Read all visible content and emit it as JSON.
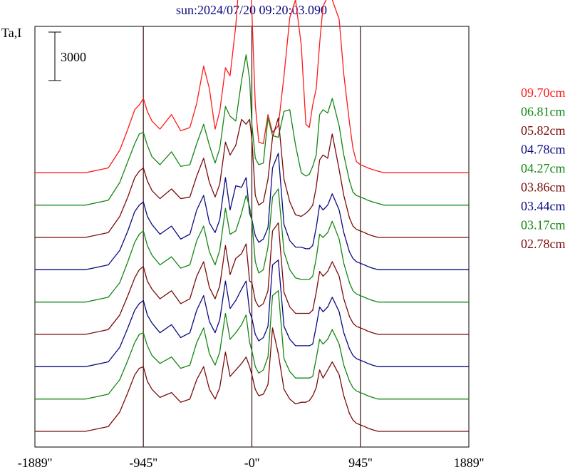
{
  "chart_data": {
    "type": "line",
    "title": "sun:2024/07/20 09:20:03.090",
    "ylabel": "Ta,I",
    "scale_bar_label": "3000",
    "x_ticks": [
      {
        "value": -1889,
        "label": "-1889''"
      },
      {
        "value": -945,
        "label": "-945''"
      },
      {
        "value": 0,
        "label": "-0''"
      },
      {
        "value": 945,
        "label": "945''"
      },
      {
        "value": 1889,
        "label": "1889''"
      }
    ],
    "vertical_markers": [
      -945,
      0,
      945
    ],
    "xlim": [
      -1889,
      1889
    ],
    "legend_placement": "right",
    "x": [
      -1889,
      -1450,
      -1250,
      -1150,
      -1080,
      -1020,
      -980,
      -945,
      -910,
      -870,
      -800,
      -700,
      -620,
      -540,
      -480,
      -420,
      -370,
      -320,
      -280,
      -230,
      -190,
      -140,
      -90,
      -50,
      -20,
      0,
      30,
      60,
      100,
      140,
      180,
      230,
      280,
      330,
      380,
      430,
      470,
      500,
      530,
      560,
      590,
      620,
      660,
      700,
      760,
      800,
      850,
      880,
      910,
      945,
      980,
      1010,
      1050,
      1100,
      1150,
      1250,
      1400,
      1889
    ],
    "series": [
      {
        "name": "09.70cm",
        "color": "#ff1a1a",
        "offset": 16000,
        "y": [
          0,
          0,
          300,
          1400,
          2700,
          3900,
          4200,
          4600,
          3800,
          3200,
          2700,
          3600,
          2600,
          2800,
          4300,
          6600,
          5200,
          2700,
          3800,
          6500,
          6000,
          9100,
          13900,
          16700,
          13500,
          10000,
          4200,
          1900,
          1800,
          3600,
          2500,
          2900,
          6000,
          9600,
          10700,
          7900,
          3000,
          2800,
          4200,
          5200,
          8000,
          10300,
          10900,
          10700,
          9500,
          6100,
          3100,
          1500,
          700,
          500,
          400,
          300,
          200,
          100,
          0,
          0,
          0,
          0
        ]
      },
      {
        "name": "06.81cm",
        "color": "#138613",
        "offset": 14000,
        "y": [
          0,
          0,
          300,
          1400,
          2700,
          3800,
          4400,
          4500,
          3700,
          3000,
          2500,
          3300,
          2400,
          2500,
          3800,
          5000,
          3700,
          2600,
          3500,
          6100,
          5500,
          5200,
          7700,
          9300,
          7800,
          5000,
          2900,
          2500,
          2600,
          5400,
          4300,
          4200,
          5800,
          5900,
          3700,
          2000,
          1800,
          1900,
          2400,
          3100,
          5600,
          5900,
          5700,
          6600,
          4900,
          3100,
          1500,
          800,
          600,
          500,
          400,
          300,
          200,
          100,
          0,
          0,
          0,
          0
        ]
      },
      {
        "name": "05.82cm",
        "color": "#7a0a0a",
        "offset": 12000,
        "y": [
          0,
          0,
          300,
          1300,
          2500,
          3700,
          4100,
          4300,
          3500,
          2900,
          2400,
          3000,
          2400,
          2500,
          3800,
          4900,
          3400,
          2500,
          3300,
          5900,
          5100,
          5700,
          7300,
          7000,
          7300,
          6100,
          2600,
          2000,
          2200,
          3600,
          6200,
          7400,
          3600,
          2200,
          1400,
          1300,
          1500,
          1700,
          2000,
          3100,
          4800,
          5100,
          4900,
          6400,
          4200,
          2600,
          1200,
          700,
          500,
          400,
          300,
          200,
          100,
          0,
          0,
          0,
          0,
          0
        ]
      },
      {
        "name": "04.78cm",
        "color": "#0a0a80",
        "offset": 10000,
        "y": [
          0,
          0,
          300,
          1200,
          2400,
          3600,
          4000,
          4200,
          3300,
          2800,
          2200,
          2700,
          1900,
          2200,
          3700,
          4600,
          2900,
          2300,
          3100,
          5700,
          3700,
          5200,
          5100,
          5700,
          3500,
          3100,
          2100,
          1700,
          1900,
          2600,
          6300,
          7200,
          2800,
          1800,
          1400,
          1400,
          1300,
          1300,
          1500,
          2600,
          4000,
          3700,
          4000,
          4700,
          3700,
          2300,
          1100,
          700,
          500,
          400,
          300,
          200,
          100,
          0,
          0,
          0,
          0,
          0
        ]
      },
      {
        "name": "04.27cm",
        "color": "#138613",
        "offset": 8000,
        "y": [
          0,
          0,
          300,
          1200,
          2500,
          3700,
          4200,
          4400,
          3500,
          2900,
          2300,
          2800,
          2100,
          2300,
          3800,
          4700,
          3100,
          2300,
          3200,
          5800,
          4200,
          4400,
          5500,
          6600,
          5900,
          5000,
          2500,
          1800,
          2000,
          3400,
          6500,
          7000,
          3100,
          2000,
          1500,
          1400,
          1400,
          1400,
          1600,
          2700,
          4200,
          4000,
          4300,
          5000,
          3900,
          2400,
          1200,
          700,
          500,
          400,
          300,
          200,
          100,
          0,
          0,
          0,
          0,
          0
        ]
      },
      {
        "name": "03.86cm",
        "color": "#7a0a0a",
        "offset": 6000,
        "y": [
          0,
          0,
          300,
          1200,
          2400,
          3500,
          4000,
          4200,
          3300,
          2800,
          2200,
          2700,
          1900,
          2200,
          3600,
          4500,
          2900,
          2200,
          3000,
          5500,
          3700,
          4700,
          5000,
          5600,
          3300,
          3200,
          2100,
          1700,
          1900,
          2700,
          6400,
          6900,
          2600,
          1700,
          1300,
          1300,
          1300,
          1300,
          1500,
          2600,
          3900,
          3600,
          3900,
          4500,
          3600,
          2200,
          1100,
          700,
          500,
          400,
          300,
          200,
          100,
          0,
          0,
          0,
          0,
          0
        ]
      },
      {
        "name": "03.44cm",
        "color": "#0a0a80",
        "offset": 4000,
        "y": [
          0,
          0,
          300,
          1200,
          2400,
          3500,
          3900,
          4100,
          3200,
          2700,
          2100,
          2600,
          1800,
          2100,
          3500,
          4400,
          2800,
          2100,
          2900,
          5300,
          3600,
          4100,
          4800,
          5300,
          3400,
          3000,
          2000,
          1600,
          1800,
          2500,
          6300,
          6600,
          2500,
          1700,
          1300,
          1300,
          1300,
          1300,
          1400,
          2500,
          3700,
          3400,
          3700,
          4300,
          3400,
          2100,
          1100,
          700,
          500,
          400,
          300,
          200,
          100,
          0,
          0,
          0,
          0,
          0
        ]
      },
      {
        "name": "03.17cm",
        "color": "#138613",
        "offset": 2000,
        "y": [
          0,
          0,
          300,
          1200,
          2400,
          3500,
          4000,
          4100,
          3300,
          2700,
          2200,
          2600,
          1900,
          2100,
          3500,
          4400,
          2800,
          2100,
          2900,
          5300,
          3700,
          4100,
          4600,
          5200,
          3500,
          3000,
          2000,
          1600,
          1800,
          2600,
          6400,
          6700,
          2500,
          1700,
          1300,
          1300,
          1300,
          1300,
          1400,
          2500,
          3700,
          3400,
          3700,
          4300,
          3400,
          2100,
          1100,
          700,
          500,
          400,
          300,
          200,
          100,
          0,
          0,
          0,
          0,
          0
        ]
      },
      {
        "name": "02.78cm",
        "color": "#7a0a0a",
        "offset": 0,
        "y": [
          0,
          0,
          300,
          1200,
          2400,
          3500,
          3900,
          4000,
          3100,
          2600,
          2100,
          2400,
          1800,
          2000,
          3200,
          4000,
          2600,
          2000,
          2700,
          4900,
          3400,
          3800,
          4200,
          4600,
          4000,
          3500,
          2600,
          2200,
          2300,
          2900,
          6400,
          4800,
          2600,
          2000,
          1700,
          1800,
          1800,
          1900,
          2200,
          2700,
          3800,
          3300,
          3800,
          4300,
          3500,
          2200,
          1100,
          700,
          500,
          400,
          300,
          200,
          100,
          0,
          0,
          0,
          0,
          0
        ]
      }
    ]
  }
}
